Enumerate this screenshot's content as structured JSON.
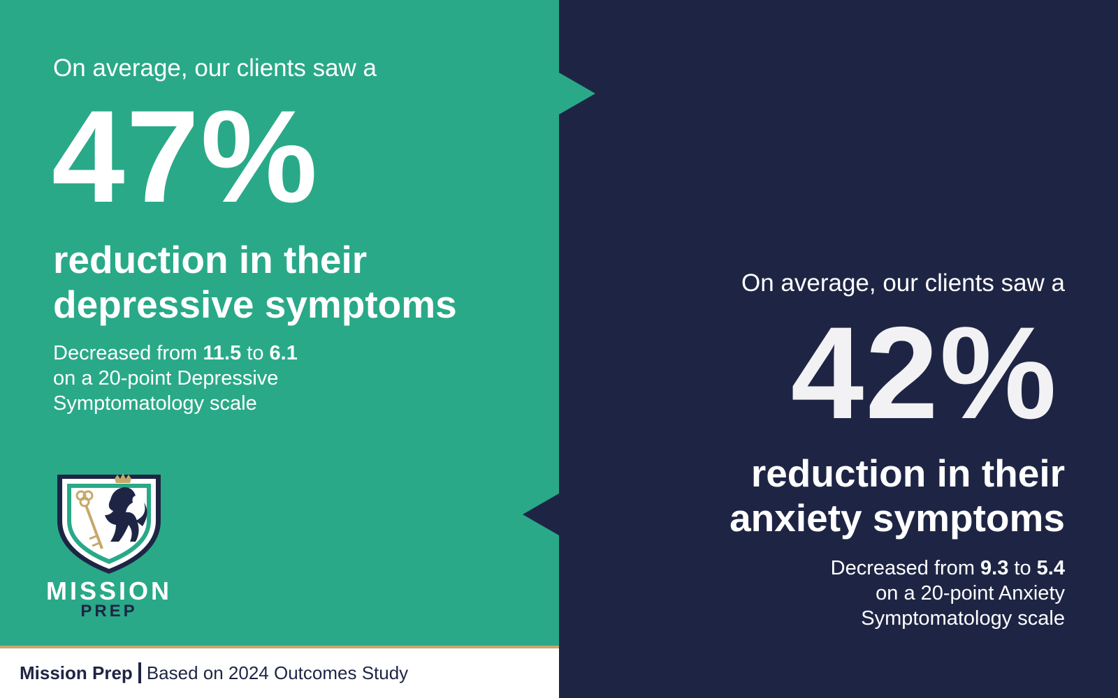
{
  "colors": {
    "green": "#29a988",
    "navy": "#1e2544",
    "gold": "#c6a86b",
    "white": "#ffffff"
  },
  "depression": {
    "intro": "On average, our clients saw a",
    "percent": "47%",
    "headline_line1": "reduction in their",
    "headline_line2": "depressive symptoms",
    "detail_prefix": "Decreased from ",
    "from_value": "11.5",
    "to_word": " to ",
    "to_value": "6.1",
    "detail_line2": "on a 20-point Depressive",
    "detail_line3": "Symptomatology scale"
  },
  "anxiety": {
    "intro": "On average, our clients saw a",
    "percent": "42%",
    "headline_line1": "reduction in their",
    "headline_line2": "anxiety symptoms",
    "detail_prefix": "Decreased from ",
    "from_value": "9.3",
    "to_word": " to ",
    "to_value": "5.4",
    "detail_line2": "on a 20-point Anxiety",
    "detail_line3": "Symptomatology scale"
  },
  "logo": {
    "icon": "lion-key-shield-icon",
    "word_top": "MISSION",
    "word_bottom": "PREP"
  },
  "footer": {
    "brand": "Mission Prep",
    "source": "Based on 2024 Outcomes Study"
  }
}
